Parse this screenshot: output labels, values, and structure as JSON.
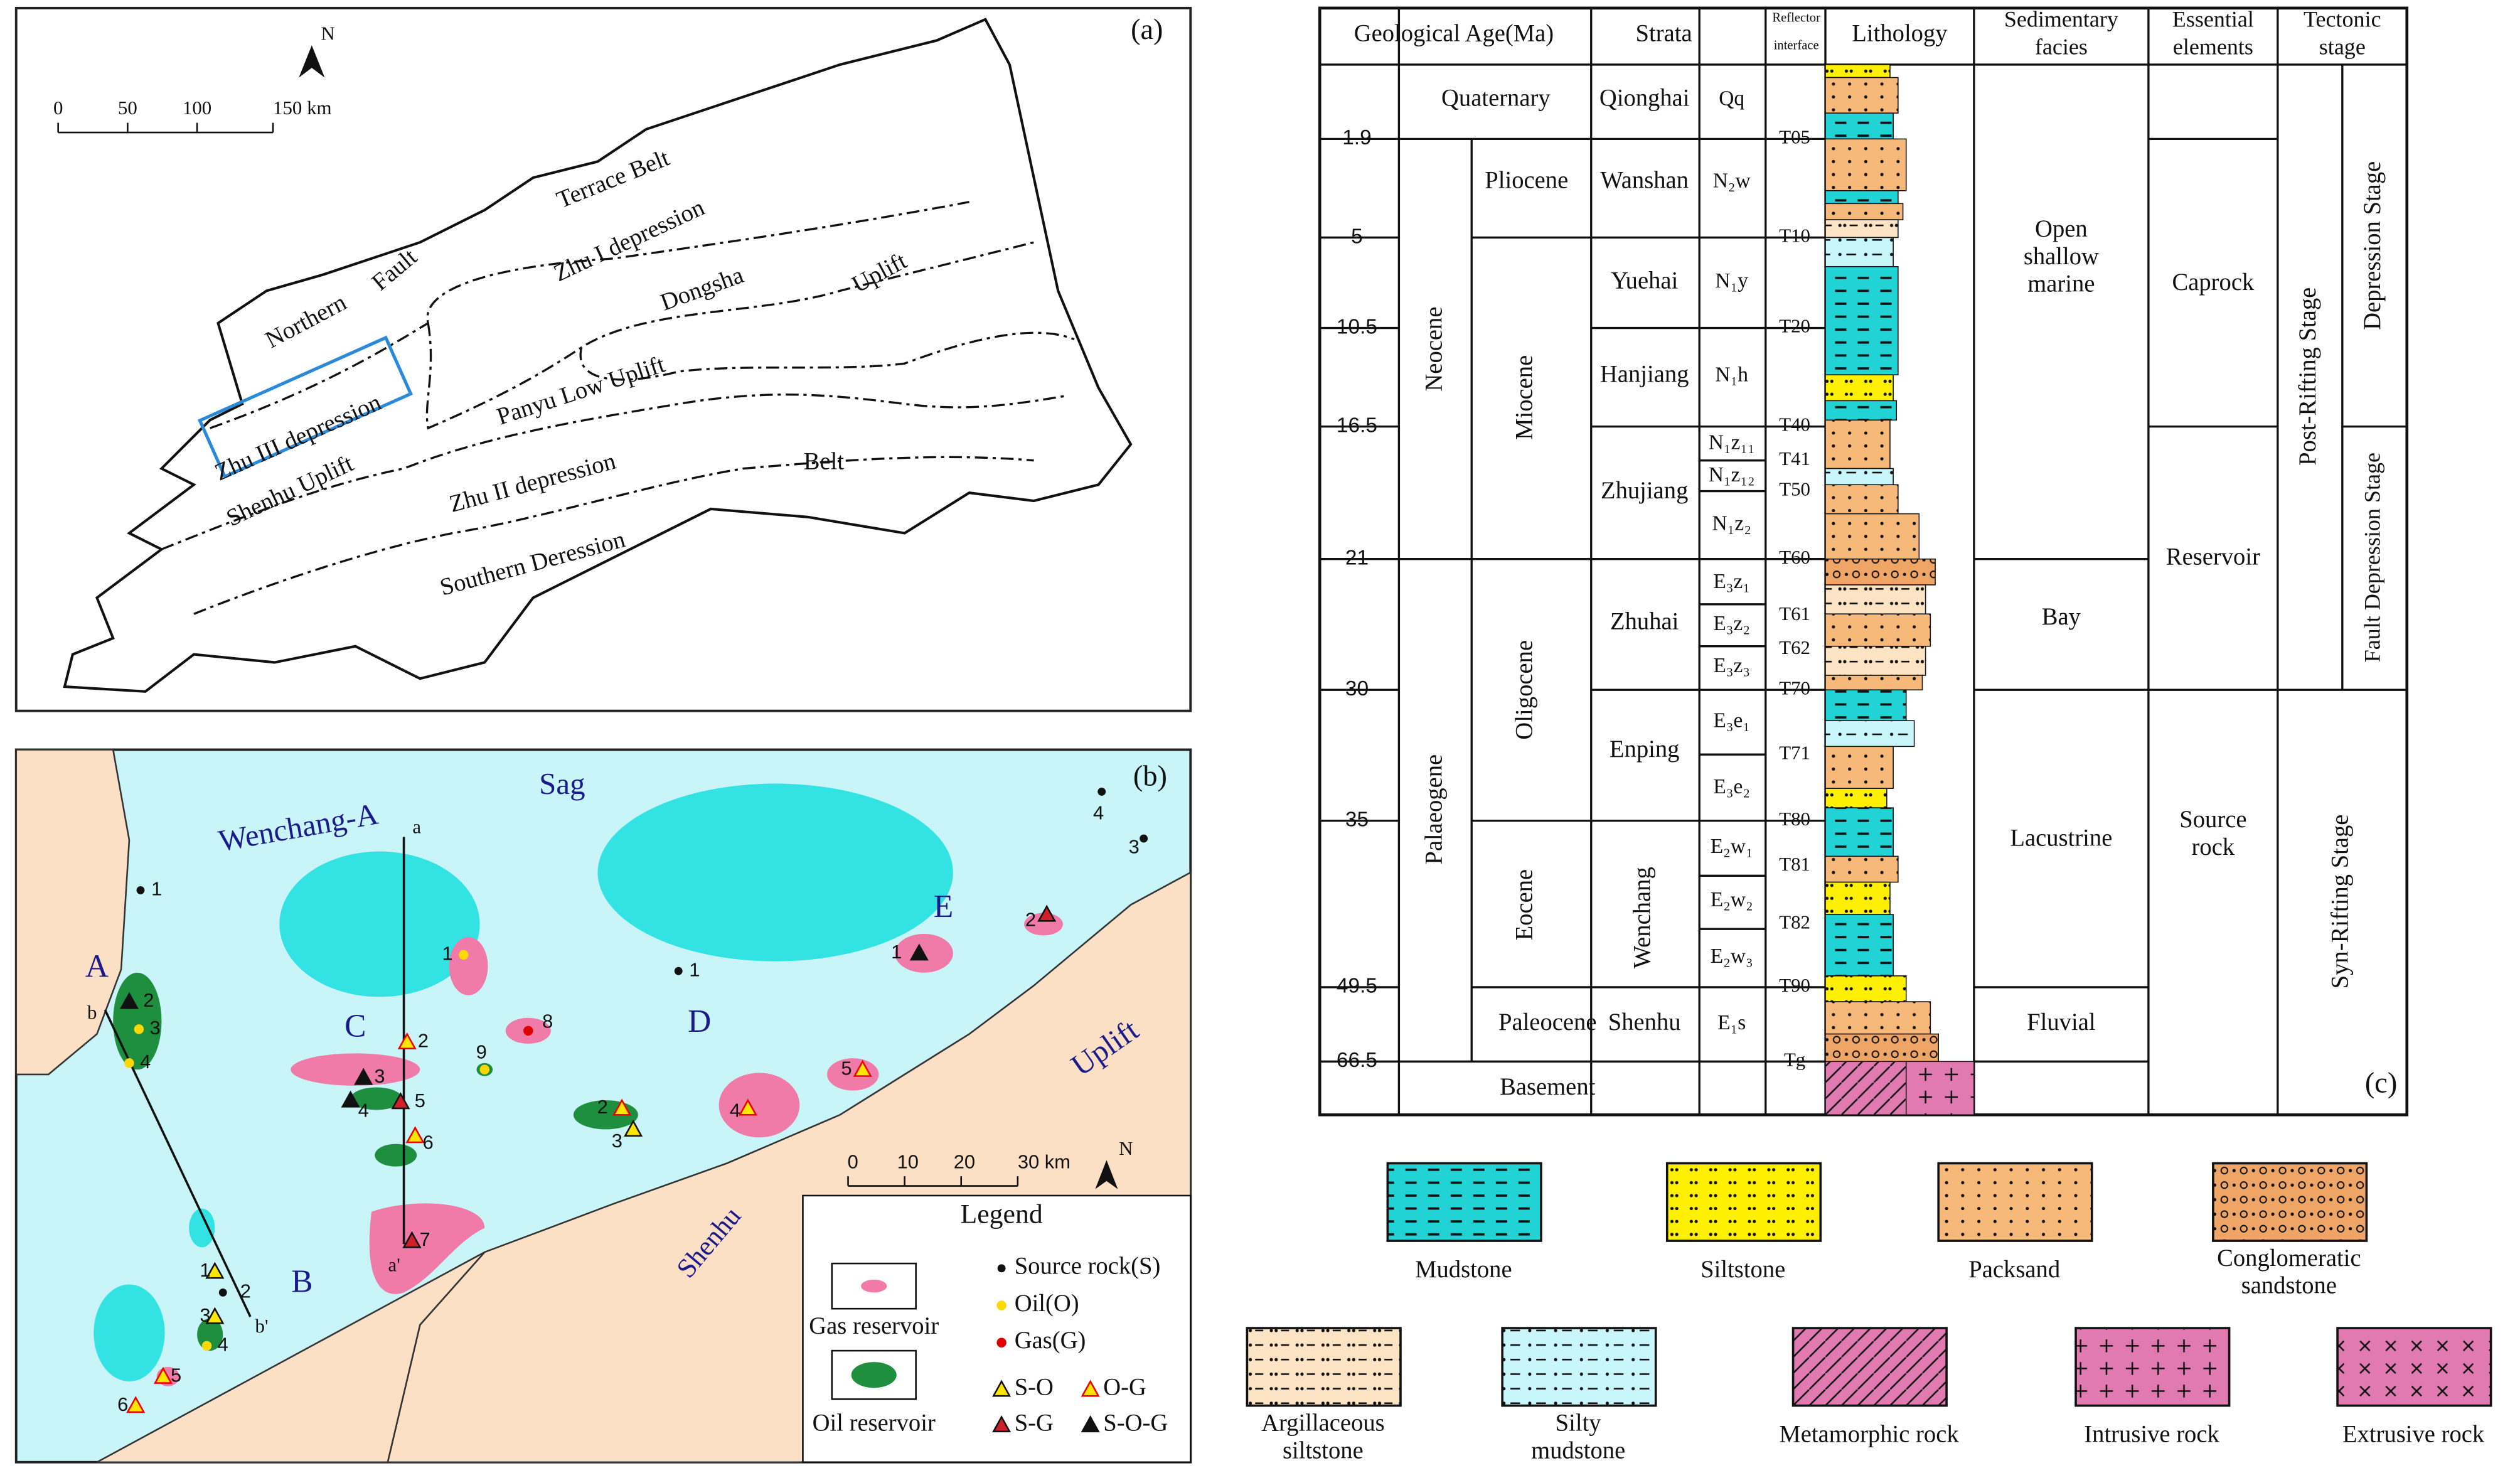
{
  "panel_a": {
    "label": "(a)",
    "north": "N",
    "scale": [
      "0",
      "50",
      "100",
      "150 km"
    ],
    "regions": [
      "Terrace Belt",
      "Northern",
      "Fault",
      "Zhu I depression",
      "Dongsha",
      "Uplift",
      "Zhu III depression",
      "Panyu Low Uplift",
      "Shenhu Uplift",
      "Zhu II depression",
      "Belt",
      "Southern Deression"
    ]
  },
  "panel_b": {
    "label": "(b)",
    "north": "N",
    "scale": [
      "0",
      "10",
      "20",
      "30 km"
    ],
    "places": [
      "Wenchang-A",
      "Sag",
      "Uplift",
      "Shenhu",
      "A",
      "B",
      "C",
      "D",
      "E"
    ],
    "section_ends": [
      "a",
      "a'",
      "b",
      "b'"
    ],
    "well_numbers": [
      "1",
      "2",
      "3",
      "4",
      "1",
      "2",
      "3",
      "4",
      "5",
      "6",
      "1",
      "2",
      "3",
      "4",
      "5",
      "6",
      "7",
      "8",
      "9",
      "2",
      "3",
      "1",
      "4",
      "5",
      "1",
      "2",
      "4",
      "3"
    ],
    "legend": {
      "title": "Legend",
      "gas_reservoir": "Gas reservoir",
      "oil_reservoir": "Oil reservoir",
      "source": "Source rock(S)",
      "oil": "Oil(O)",
      "gas": "Gas(G)",
      "so": "S-O",
      "og": "O-G",
      "sg": "S-G",
      "sog": "S-O-G"
    }
  },
  "panel_c": {
    "label": "(c)",
    "headers": [
      "Geological Age(Ma)",
      "Strata",
      "Reflector interface",
      "Lithology",
      "Sedimentary facies",
      "Essential elements",
      "Tectonic stage"
    ],
    "ages": [
      "1.9",
      "5",
      "10.5",
      "16.5",
      "21",
      "30",
      "35",
      "49.5",
      "66.5"
    ],
    "eras": [
      "Quaternary",
      "Neocene",
      "Palaeogene",
      "Basement"
    ],
    "epochs": [
      "Pliocene",
      "Miocene",
      "Oligocene",
      "Eocene",
      "Paleocene"
    ],
    "formations": [
      "Qionghai",
      "Wanshan",
      "Yuehai",
      "Hanjiang",
      "Zhujiang",
      "Zhuhai",
      "Enping",
      "Wenchang",
      "Shenhu"
    ],
    "codes": [
      "Qq",
      "N₂w",
      "N₁y",
      "N₁h",
      "N₁z₁₁",
      "N₁z₁₂",
      "N₁z₂",
      "E₃z₁",
      "E₃z₂",
      "E₃z₃",
      "E₃e₁",
      "E₃e₂",
      "E₂w₁",
      "E₂w₂",
      "E₂w₃",
      "E₁s"
    ],
    "reflectors": [
      "T05",
      "T10",
      "T20",
      "T40",
      "T41",
      "T50",
      "T60",
      "T61",
      "T62",
      "T70",
      "T71",
      "T80",
      "T81",
      "T82",
      "T90",
      "Tg"
    ],
    "facies": [
      "Open shallow marine",
      "Bay",
      "Lacustrine",
      "Fluvial"
    ],
    "elements": [
      "Caprock",
      "Reservoir",
      "Source rock"
    ],
    "tectonic": [
      "Post-Rifting Stage",
      "Syn-Rifting Stage",
      "Depression Stage",
      "Fault Depression Stage"
    ]
  },
  "lithology_legend": [
    "Mudstone",
    "Siltstone",
    "Packsand",
    "Conglomeratic sandstone",
    "Argillaceous siltstone",
    "Silty mudstone",
    "Metamorphic rock",
    "Intrusive rock",
    "Extrusive rock"
  ]
}
